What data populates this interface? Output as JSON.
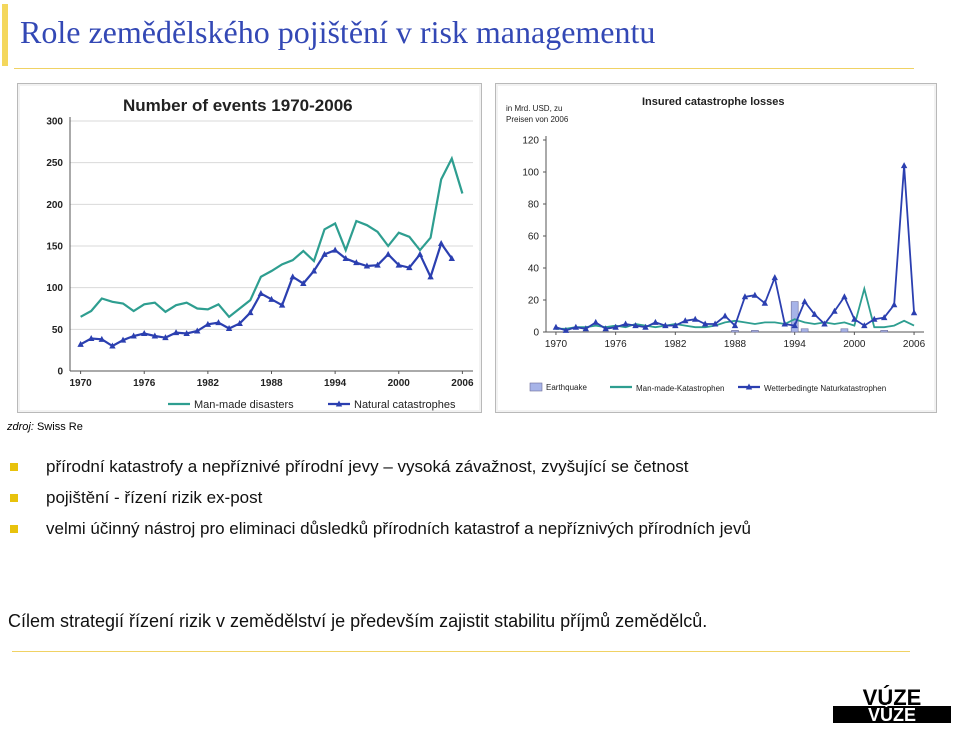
{
  "slide": {
    "title": "Role zemědělského pojištění v risk managementu",
    "source_prefix": "zdroj:",
    "source_name": "Swiss Re",
    "bullets": [
      "přírodní katastrofy a nepříznivé přírodní jevy – vysoká závažnost, zvyšující se četnost",
      "pojištění - řízení rizik ex-post",
      "velmi účinný nástroj pro eliminaci důsledků přírodních katastrof a nepříznivých přírodních jevů"
    ],
    "conclusion": "Cílem strategií řízení rizik v zemědělství je především zajistit stabilitu příjmů zemědělců.",
    "logo_text": "VÚZE",
    "colors": {
      "title": "#3348b5",
      "accent": "#f4d75c",
      "bullet": "#e8c20c"
    }
  },
  "chart_data": [
    {
      "type": "line",
      "title": "Number of events 1970-2006",
      "xlabel": "",
      "ylabel": "",
      "x_ticks": [
        "1970",
        "1976",
        "1982",
        "1988",
        "1994",
        "2000",
        "2006"
      ],
      "y_ticks": [
        "0",
        "50",
        "100",
        "150",
        "200",
        "250",
        "300"
      ],
      "xlim": [
        1969,
        2007
      ],
      "ylim": [
        0,
        300
      ],
      "grid": true,
      "legend": "bottom",
      "x": [
        1970,
        1971,
        1972,
        1973,
        1974,
        1975,
        1976,
        1977,
        1978,
        1979,
        1980,
        1981,
        1982,
        1983,
        1984,
        1985,
        1986,
        1987,
        1988,
        1989,
        1990,
        1991,
        1992,
        1993,
        1994,
        1995,
        1996,
        1997,
        1998,
        1999,
        2000,
        2001,
        2002,
        2003,
        2004,
        2005,
        2006
      ],
      "series": [
        {
          "name": "Man-made disasters",
          "color": "#2e9e90",
          "marker": "none",
          "values": [
            65,
            72,
            87,
            83,
            81,
            72,
            80,
            82,
            71,
            79,
            82,
            75,
            74,
            80,
            65,
            75,
            85,
            113,
            120,
            128,
            133,
            144,
            132,
            170,
            177,
            145,
            180,
            175,
            167,
            150,
            166,
            161,
            145,
            160,
            230,
            255,
            213
          ]
        },
        {
          "name": "Natural catastrophes",
          "color": "#2b3fb0",
          "marker": "triangle",
          "values": [
            32,
            39,
            38,
            30,
            37,
            42,
            45,
            42,
            40,
            46,
            45,
            48,
            56,
            58,
            51,
            57,
            70,
            93,
            86,
            79,
            113,
            105,
            120,
            140,
            145,
            135,
            130,
            126,
            127,
            140,
            127,
            124,
            140,
            113,
            153,
            135,
            null
          ]
        }
      ]
    },
    {
      "type": "line",
      "title": "Insured catastrophe losses",
      "unit_note_line1": "in Mrd. USD, zu",
      "unit_note_line2": "Preisen von 2006",
      "x_ticks": [
        "1970",
        "1976",
        "1982",
        "1988",
        "1994",
        "2000",
        "2006"
      ],
      "y_ticks": [
        "0",
        "20",
        "40",
        "60",
        "80",
        "100",
        "120"
      ],
      "xlim": [
        1969,
        2007
      ],
      "ylim": [
        0,
        120
      ],
      "grid": false,
      "legend": "bottom",
      "x": [
        1970,
        1971,
        1972,
        1973,
        1974,
        1975,
        1976,
        1977,
        1978,
        1979,
        1980,
        1981,
        1982,
        1983,
        1984,
        1985,
        1986,
        1987,
        1988,
        1989,
        1990,
        1991,
        1992,
        1993,
        1994,
        1995,
        1996,
        1997,
        1998,
        1999,
        2000,
        2001,
        2002,
        2003,
        2004,
        2005,
        2006
      ],
      "bars": {
        "name": "Earthquake",
        "color": "#a7b4e8",
        "x": [
          1988,
          1990,
          1994,
          1995,
          1999,
          2003
        ],
        "values": [
          1,
          1,
          19,
          2,
          2,
          1
        ]
      },
      "series": [
        {
          "name": "Man-made-Katastrophen",
          "color": "#2e9e90",
          "marker": "none",
          "values": [
            2,
            2,
            3,
            3,
            4,
            3,
            4,
            3,
            5,
            4,
            3,
            4,
            5,
            4,
            3,
            3,
            4,
            6,
            7,
            6,
            5,
            6,
            6,
            5,
            8,
            6,
            5,
            6,
            5,
            6,
            4,
            27,
            3,
            3,
            4,
            7,
            4
          ]
        },
        {
          "name": "Wetterbedingte Naturkatastrophen",
          "color": "#2b3fb0",
          "marker": "triangle",
          "values": [
            3,
            1,
            3,
            2,
            6,
            2,
            3,
            5,
            4,
            3,
            6,
            4,
            4,
            7,
            8,
            5,
            5,
            10,
            4,
            22,
            23,
            18,
            34,
            5,
            4,
            19,
            11,
            5,
            13,
            22,
            8,
            4,
            8,
            9,
            17,
            104,
            12
          ]
        }
      ]
    }
  ]
}
